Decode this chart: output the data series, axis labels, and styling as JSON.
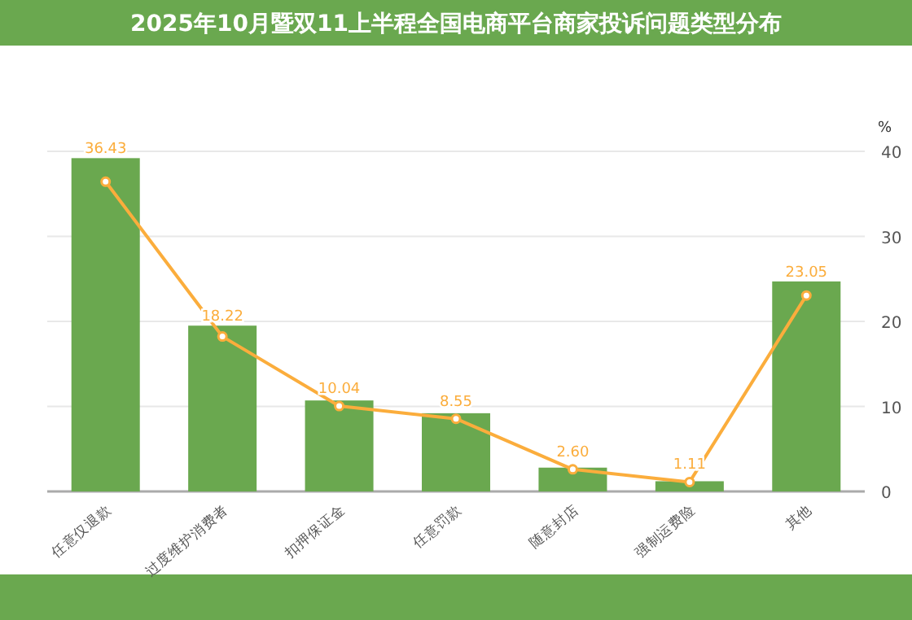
{
  "chart_data": {
    "type": "bar",
    "title": "2025年10月暨双11上半程全国电商平台商家投诉问题类型分布",
    "ylabel": "%",
    "categories": [
      "任意仅退款",
      "过度维护消费者",
      "扣押保证金",
      "任意罚款",
      "随意封店",
      "强制运费险",
      "其他"
    ],
    "ylim": [
      0,
      40
    ],
    "yticks": [
      0,
      10,
      20,
      30,
      40
    ],
    "grid": "y",
    "marker": "circle",
    "series": [
      {
        "color": "#6aa84f",
        "values": [
          39.2,
          19.5,
          10.7,
          9.2,
          2.8,
          1.2,
          24.7
        ]
      },
      {
        "type": "line",
        "color": "#fbad3c",
        "values": [
          36.43,
          18.22,
          10.04,
          8.55,
          2.6,
          1.11,
          23.05
        ],
        "value_labels": [
          "36.43",
          "18.22",
          "10.04",
          "8.55",
          "2.60",
          "1.11",
          "23.05"
        ]
      }
    ]
  }
}
